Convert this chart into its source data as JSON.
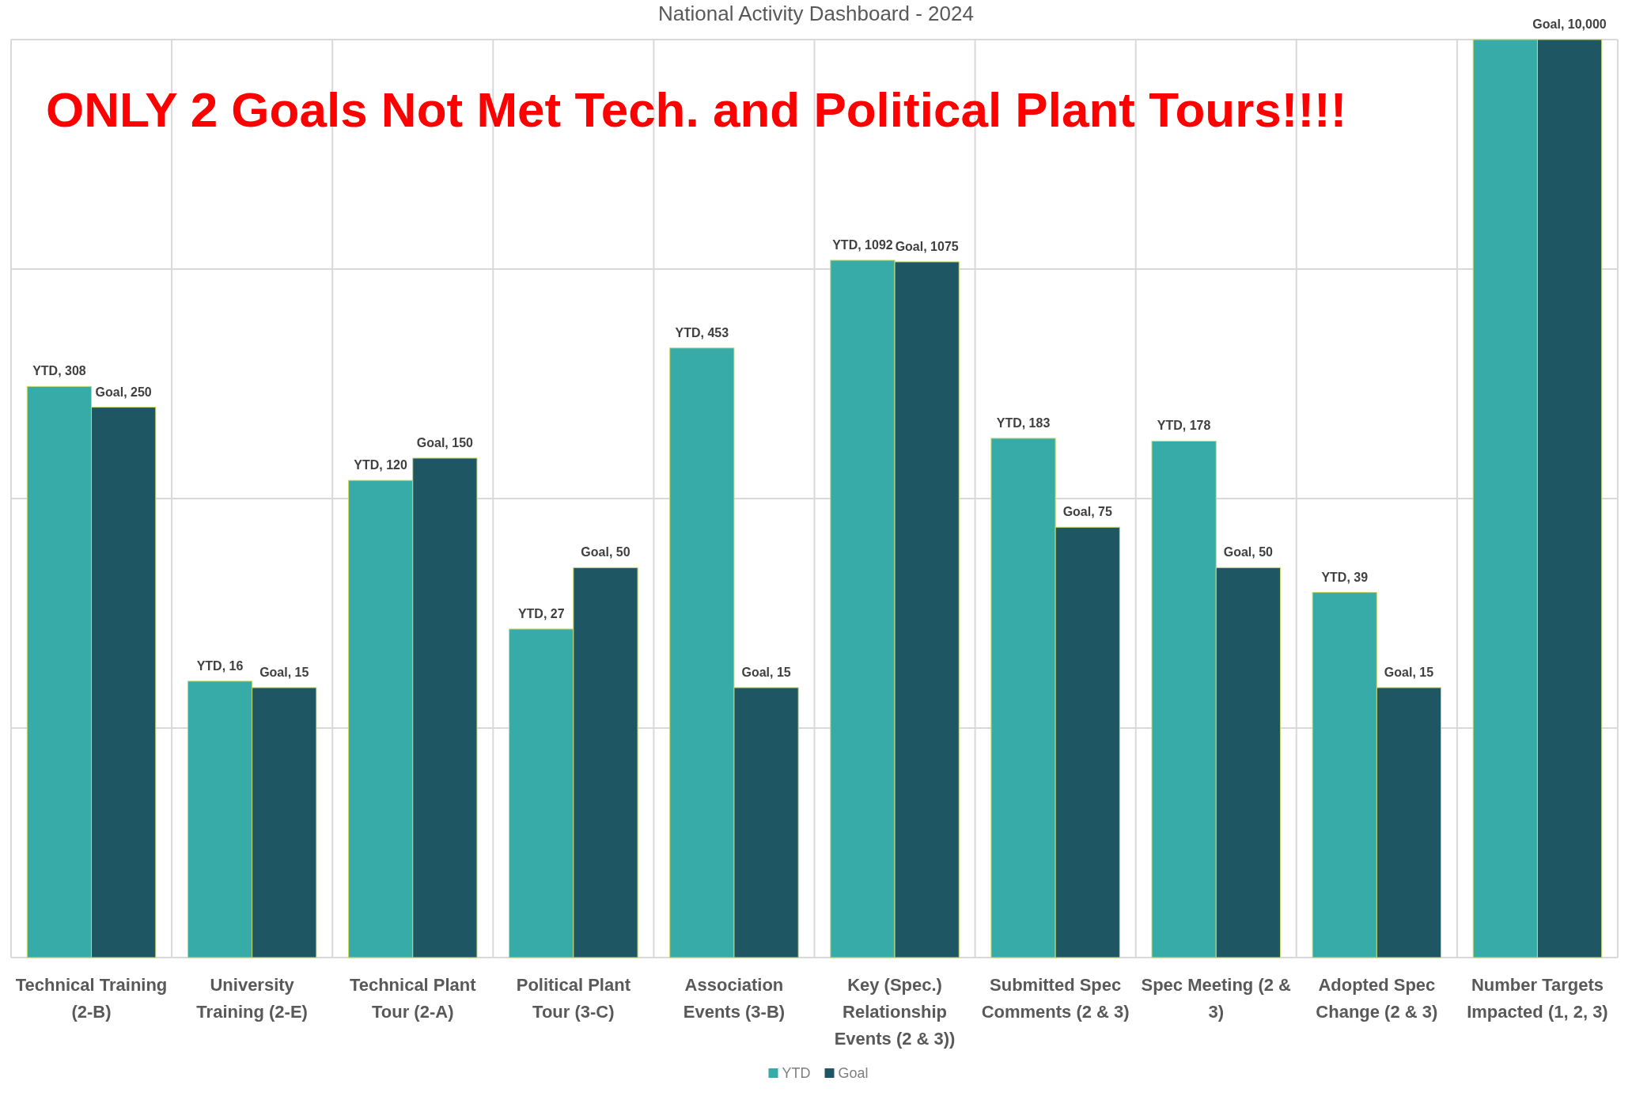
{
  "chart_data": {
    "type": "bar",
    "title": "National Activity Dashboard - 2024",
    "annotations": [
      "ONLY 2 Goals Not Met Tech. and Political Plant Tours!!!!"
    ],
    "categories": [
      "Technical Training (2-B)",
      "University Training (2-E)",
      "Technical Plant Tour (2-A)",
      "Political Plant Tour (3-C)",
      "Association Events (3-B)",
      "Key (Spec.) Relationship Events (2 & 3))",
      "Submitted Spec Comments (2 & 3)",
      "Spec Meeting (2 & 3)",
      "Adopted Spec Change (2 & 3)",
      "Number Targets Impacted (1, 2, 3)"
    ],
    "series": [
      {
        "name": "YTD",
        "color": "#37aba8",
        "values": [
          308,
          16,
          120,
          27,
          453,
          1092,
          183,
          178,
          39,
          10000
        ],
        "value_labels": [
          "YTD, 308",
          "YTD, 16",
          "YTD, 120",
          "YTD, 27",
          "YTD, 453",
          "YTD, 1092",
          "YTD, 183",
          "YTD, 178",
          "YTD, 39",
          null
        ]
      },
      {
        "name": "Goal",
        "color": "#1f5663",
        "values": [
          250,
          15,
          150,
          50,
          15,
          1075,
          75,
          50,
          15,
          10000
        ],
        "value_labels": [
          "Goal, 250",
          "Goal, 15",
          "Goal, 150",
          "Goal, 50",
          "Goal, 15",
          "Goal, 1075",
          "Goal, 75",
          "Goal, 50",
          "Goal, 15",
          "Goal, 10,000"
        ]
      }
    ],
    "log": true,
    "ylim": [
      1,
      10000
    ],
    "yticks": [
      {
        "value": 1,
        "label": null
      },
      {
        "value": 10,
        "label": null
      },
      {
        "value": 100,
        "label": null
      },
      {
        "value": 1000,
        "label": null
      },
      {
        "value": 10000,
        "label": null
      }
    ],
    "tick_labels": false,
    "grid": true,
    "legend": "bottom"
  }
}
